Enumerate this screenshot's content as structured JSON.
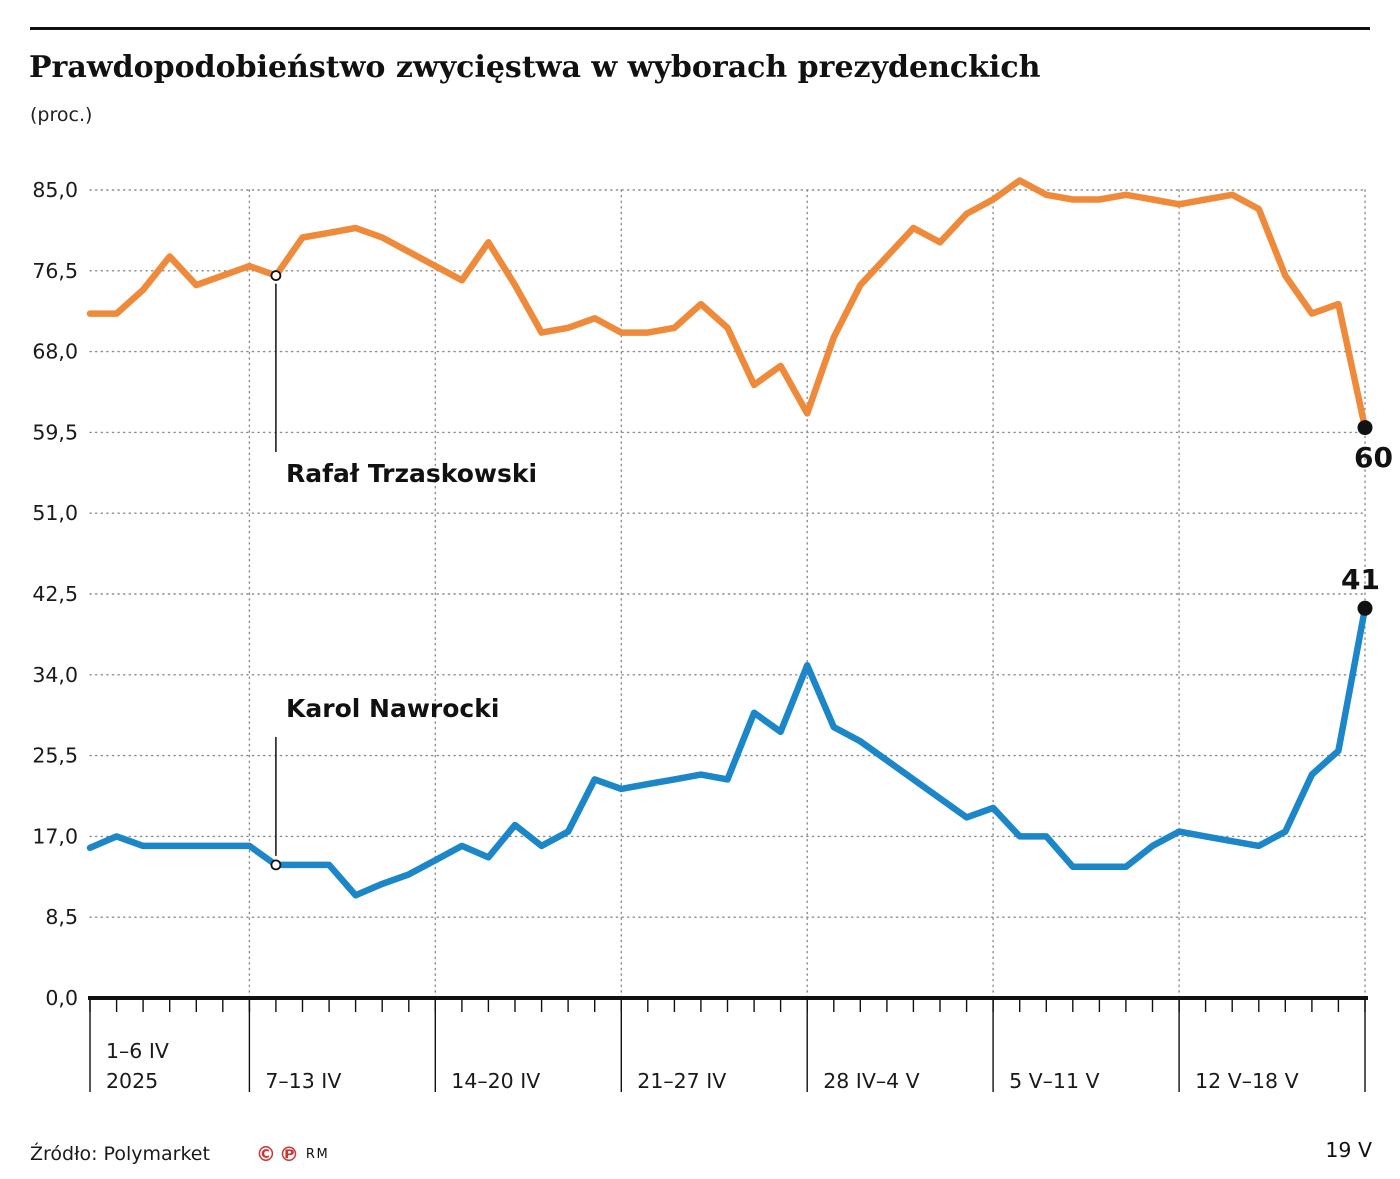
{
  "title": "Prawdopodobieństwo zwycięstwa w wyborach prezydenckich",
  "subtitle": "(proc.)",
  "footer": {
    "source": "Źródło: Polymarket",
    "copyright_symbol": "©",
    "phonogram_symbol": "℗",
    "rights": "RM"
  },
  "chart_data": {
    "type": "line",
    "title": "Prawdopodobieństwo zwycięstwa w wyborach prezydenckich",
    "unit": "proc.",
    "ylim": [
      0,
      85
    ],
    "grid": true,
    "legend_position": "inline-callouts",
    "yticks": [
      {
        "v": 85,
        "label": "85,0"
      },
      {
        "v": 76.5,
        "label": "76,5"
      },
      {
        "v": 68,
        "label": "68,0"
      },
      {
        "v": 59.5,
        "label": "59,5"
      },
      {
        "v": 51,
        "label": "51,0"
      },
      {
        "v": 42.5,
        "label": "42,5"
      },
      {
        "v": 34,
        "label": "34,0"
      },
      {
        "v": 25.5,
        "label": "25,5"
      },
      {
        "v": 17,
        "label": "17,0"
      },
      {
        "v": 8.5,
        "label": "8,5"
      },
      {
        "v": 0,
        "label": "0,0"
      }
    ],
    "x_week_labels": [
      {
        "start_index": 0,
        "lines": [
          "1–6 IV",
          "2025"
        ]
      },
      {
        "start_index": 6,
        "lines": [
          "7–13 IV"
        ]
      },
      {
        "start_index": 13,
        "lines": [
          "14–20 IV"
        ]
      },
      {
        "start_index": 20,
        "lines": [
          "21–27 IV"
        ]
      },
      {
        "start_index": 27,
        "lines": [
          "28 IV–4 V"
        ]
      },
      {
        "start_index": 34,
        "lines": [
          "5 V–11 V"
        ]
      },
      {
        "start_index": 41,
        "lines": [
          "12 V–18 V"
        ]
      }
    ],
    "x_end_label": "19 V",
    "week_boundary_indices": [
      0,
      6,
      13,
      20,
      27,
      34,
      41,
      48
    ],
    "series": [
      {
        "name": "Rafał Trzaskowski",
        "color": "#ef8a3a",
        "end_label": "60",
        "callout_index": 7,
        "values": [
          72,
          72,
          74.5,
          78,
          75,
          76,
          77,
          76,
          80,
          80.5,
          81,
          80,
          78.5,
          77,
          75.5,
          79.5,
          75,
          70,
          70.5,
          71.5,
          70,
          70,
          70.5,
          73,
          70.5,
          64.5,
          66.5,
          61.5,
          69.5,
          75,
          78,
          81,
          79.5,
          82.5,
          84,
          86,
          84.5,
          84,
          84,
          84.5,
          84,
          83.5,
          84,
          84.5,
          83,
          76,
          72,
          73,
          60
        ]
      },
      {
        "name": "Karol Nawrocki",
        "color": "#1b87c9",
        "end_label": "41",
        "callout_index": 7,
        "values": [
          15.8,
          17,
          16,
          16,
          16,
          16,
          16,
          14,
          14,
          14,
          10.8,
          12,
          13,
          14.5,
          16,
          14.8,
          18.2,
          16,
          17.5,
          23,
          22,
          22.5,
          23,
          23.5,
          23,
          30,
          28,
          35,
          28.5,
          27,
          25,
          23,
          21,
          19,
          20,
          17,
          17,
          13.8,
          13.8,
          13.8,
          16,
          17.5,
          17,
          16.5,
          16,
          17.5,
          23.5,
          26,
          41
        ]
      }
    ]
  }
}
